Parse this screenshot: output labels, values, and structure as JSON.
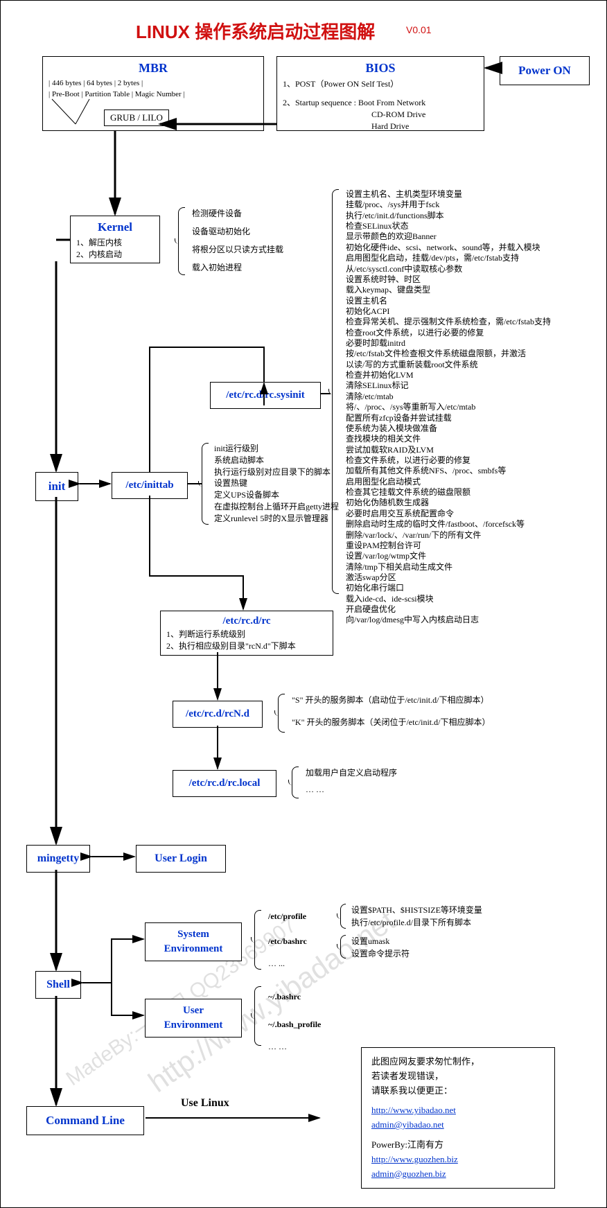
{
  "title": {
    "main": "LINUX 操作系统启动过程图解",
    "version": "V0.01"
  },
  "boxes": {
    "power_on": "Power ON",
    "bios": {
      "header": "BIOS",
      "line1": "1、POST（Power ON Self Test）",
      "line2": "2、Startup sequence : Boot From Network",
      "line3": "CD-ROM Drive",
      "line4": "Hard Drive"
    },
    "mbr": {
      "header": "MBR",
      "row1": "|  446 bytes  |     64 bytes       |     2  bytes       |",
      "row2": "|  Pre-Boot  |  Partition Table  |  Magic Number  |",
      "grub": "GRUB / LILO"
    },
    "kernel": {
      "header": "Kernel",
      "line1": "1、解压内核",
      "line2": "2、内核启动"
    },
    "init": "init",
    "inittab": "/etc/inittab",
    "sysinit": "/etc/rc.d/rc.sysinit",
    "rc": {
      "header": "/etc/rc.d/rc",
      "line1": "1、判断运行系统级别",
      "line2": "2、执行相应级别目录\"rcN.d\"下脚本"
    },
    "rcnd": "/etc/rc.d/rcN.d",
    "rclocal": "/etc/rc.d/rc.local",
    "mingetty": "mingetty",
    "userlogin": "User Login",
    "shell": "Shell",
    "sysenv": {
      "header": "System",
      "header2": "Environment"
    },
    "userenv": {
      "header": "User",
      "header2": "Environment"
    },
    "cmdline": "Command Line",
    "uselinux": "Use Linux"
  },
  "notes": {
    "kernel": [
      "检测硬件设备",
      "设备驱动初始化",
      "将根分区以只读方式挂载",
      "载入初始进程"
    ],
    "inittab": [
      "init运行级别",
      "系统启动脚本",
      "执行运行级别对应目录下的脚本",
      "设置热键",
      "定义UPS设备脚本",
      "在虚拟控制台上循环开启getty进程",
      "定义runlevel 5时的X显示管理器"
    ],
    "sysinit": [
      "设置主机名、主机类型环境变量",
      "挂载/proc、/sys并用于fsck",
      "执行/etc/init.d/functions脚本",
      "检查SELinux状态",
      "显示带颜色的欢迎Banner",
      "初始化硬件ide、scsi、network、sound等，并载入模块",
      "启用图型化启动，挂载/dev/pts，需/etc/fstab支持",
      "从/etc/sysctl.conf中读取核心参数",
      "设置系统时钟、时区",
      "载入keymap、键盘类型",
      "设置主机名",
      "初始化ACPI",
      "检查异常关机、提示强制文件系统检查，需/etc/fstab支持",
      "检查root文件系统，以进行必要的修复",
      "必要时卸载initrd",
      "按/etc/fstab文件检查根文件系统磁盘限额，并激活",
      "以读/写的方式重新装载root文件系统",
      "检查并初始化LVM",
      "清除SELinux标记",
      "清除/etc/mtab",
      "将/、/proc、/sys等重新写入/etc/mtab",
      "配置所有zfcp设备并尝试挂载",
      "使系统为装入模块做准备",
      "查找模块的相关文件",
      "尝试加载软RAID及LVM",
      "检查文件系统，以进行必要的修复",
      "加载所有其他文件系统NFS、/proc、smbfs等",
      "启用图型化启动模式",
      "检查其它挂载文件系统的磁盘限额",
      "初始化伪随机数生成器",
      "必要时启用交互系统配置命令",
      "删除启动时生成的临时文件/fastboot、/forcefsck等",
      "删除/var/lock/、/var/run/下的所有文件",
      "重设PAM控制台许可",
      "设置/var/log/wtmp文件",
      "清除/tmp下相关启动生成文件",
      "激活swap分区",
      "初始化串行端口",
      "载入ide-cd、ide-scsi模块",
      "开启硬盘优化",
      "向/var/log/dmesg中写入内核启动日志"
    ],
    "rcnd": [
      "\"S\" 开头的服务脚本（启动位于/etc/init.d/下相应脚本）",
      "\"K\" 开头的服务脚本（关闭位于/etc/init.d/下相应脚本）"
    ],
    "rclocal": [
      "加载用户自定义启动程序",
      "… …"
    ],
    "profile": [
      "设置$PATH、$HISTSIZE等环境变量",
      "执行/etc/profile.d/目录下所有脚本"
    ],
    "bashrc": [
      "设置umask",
      "设置命令提示符"
    ],
    "sysenv_files": [
      "/etc/profile",
      "/etc/bashrc",
      "… ..."
    ],
    "userenv_files": [
      "~/.bashrc",
      "~/.bash_profile",
      "… …"
    ]
  },
  "footer": {
    "l1": "此图应网友要求匆忙制作，",
    "l2": "若读者发现错误，",
    "l3": "请联系我以便更正：",
    "url1": "http://www.yibadao.net",
    "email1": "admin@yibadao.net",
    "l4": "PowerBy:江南有方",
    "url2": "http://www.guozhen.biz",
    "email2": "admin@guozhen.biz"
  }
}
